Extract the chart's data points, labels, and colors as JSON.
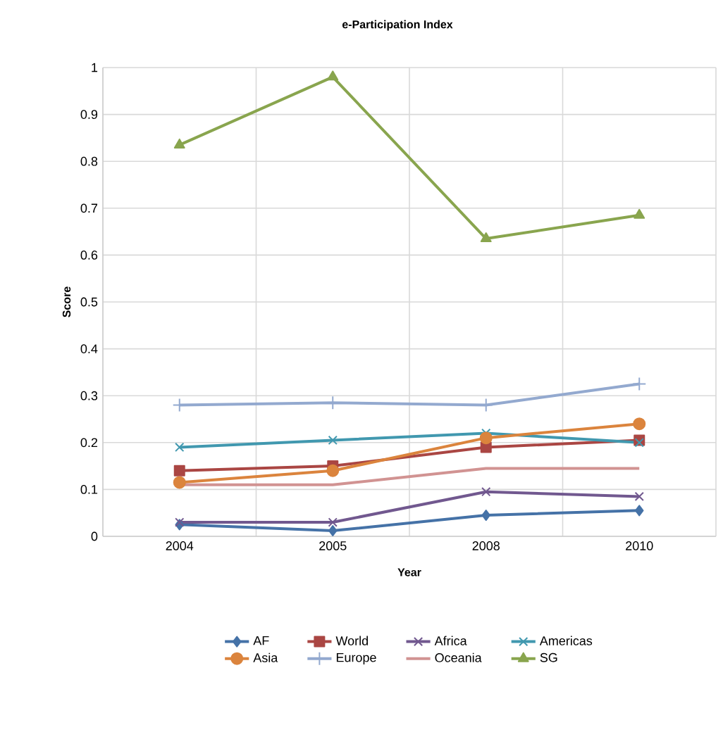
{
  "chart_data": {
    "type": "line",
    "title": "e-Participation Index",
    "xlabel": "Year",
    "ylabel": "Score",
    "categories": [
      "2004",
      "2005",
      "2008",
      "2010"
    ],
    "ylim": [
      0,
      1
    ],
    "yticks": [
      0,
      0.1,
      0.2,
      0.3,
      0.4,
      0.5,
      0.6,
      0.7,
      0.8,
      0.9,
      1
    ],
    "grid": true,
    "legend": "bottom",
    "series": [
      {
        "name": "AF",
        "color": "#4572a7",
        "marker": "diamond",
        "values": [
          0.025,
          0.012,
          0.045,
          0.055
        ]
      },
      {
        "name": "World",
        "color": "#aa4643",
        "marker": "square",
        "values": [
          0.14,
          0.15,
          0.19,
          0.205
        ]
      },
      {
        "name": "Africa",
        "color": "#71588f",
        "marker": "cross",
        "values": [
          0.03,
          0.03,
          0.095,
          0.085
        ]
      },
      {
        "name": "Americas",
        "color": "#4198af",
        "marker": "cross",
        "values": [
          0.19,
          0.205,
          0.22,
          0.2
        ]
      },
      {
        "name": "Asia",
        "color": "#db843d",
        "marker": "circle",
        "values": [
          0.115,
          0.14,
          0.21,
          0.24
        ]
      },
      {
        "name": "Europe",
        "color": "#93a9cf",
        "marker": "plus",
        "values": [
          0.28,
          0.285,
          0.28,
          0.325
        ]
      },
      {
        "name": "Oceania",
        "color": "#d19392",
        "marker": "none",
        "values": [
          0.11,
          0.11,
          0.145,
          0.145
        ]
      },
      {
        "name": "SG",
        "color": "#89a54e",
        "marker": "triangle",
        "values": [
          0.835,
          0.98,
          0.635,
          0.685
        ]
      }
    ]
  }
}
